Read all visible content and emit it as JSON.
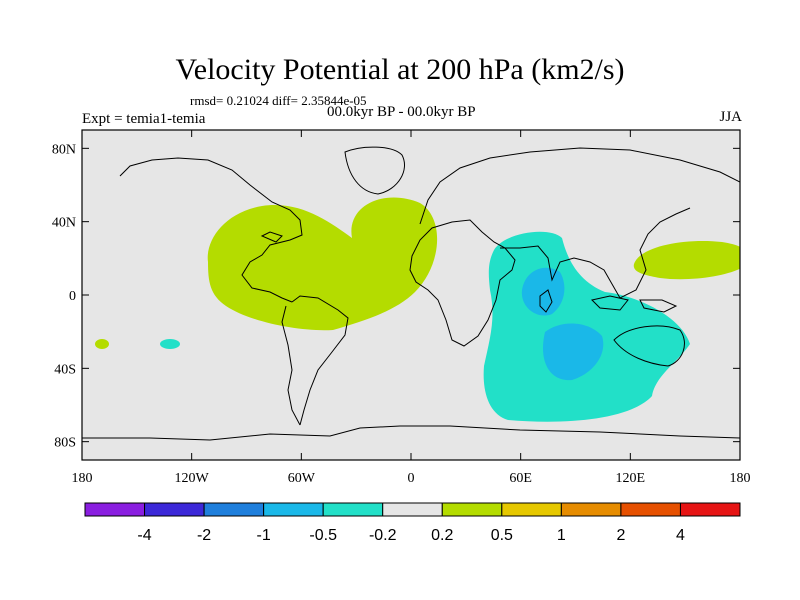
{
  "chart_data": {
    "type": "contour-map",
    "title": "Velocity Potential at 200 hPa (km2/s)",
    "stats_text": "rmsd= 0.21024 diff= 2.35844e-05",
    "experiment_text": "Expt = temia1-temia",
    "period_text": "00.0kyr BP - 00.0kyr BP",
    "season": "JJA",
    "x_range": [
      -180,
      180
    ],
    "y_range": [
      -90,
      90
    ],
    "x_ticks": [
      -180,
      -120,
      -60,
      0,
      60,
      120,
      180
    ],
    "x_tick_labels": [
      "180",
      "120W",
      "60W",
      "0",
      "60E",
      "120E",
      "180"
    ],
    "y_ticks": [
      80,
      40,
      0,
      -40,
      -80
    ],
    "y_tick_labels": [
      "80N",
      "40N",
      "0",
      "40S",
      "80S"
    ],
    "colorbar": {
      "colors": [
        "#8a1ee0",
        "#3c28d8",
        "#1f7fdc",
        "#1ab8e8",
        "#22e0c8",
        "#e6e6e6",
        "#b4dc00",
        "#e6c800",
        "#e68c00",
        "#e65000",
        "#e61414"
      ],
      "labels": [
        "-4",
        "-2",
        "-1",
        "-0.5",
        "-0.2",
        "0.2",
        "0.5",
        "1",
        "2",
        "4"
      ]
    },
    "regions": [
      {
        "name": "atlantic-america-positive",
        "level": "0.2 to 0.5",
        "lon_range": [
          -110,
          10
        ],
        "lat_range": [
          -20,
          50
        ]
      },
      {
        "name": "west-pacific-positive",
        "level": "0.2 to 0.5",
        "lon_range": [
          123,
          180
        ],
        "lat_range": [
          15,
          30
        ]
      },
      {
        "name": "south-pacific-positive-spot",
        "level": "0.2 to 0.5",
        "lon_range": [
          -175,
          -170
        ],
        "lat_range": [
          -30,
          -25
        ]
      },
      {
        "name": "indian-ocean-negative",
        "level": "-0.5 to -0.2",
        "lon_range": [
          40,
          160
        ],
        "lat_range": [
          -70,
          35
        ]
      },
      {
        "name": "arabian-sea-negative-core",
        "level": "-1 to -0.5",
        "lon_range": [
          60,
          75
        ],
        "lat_range": [
          0,
          25
        ]
      },
      {
        "name": "south-indian-negative-core",
        "level": "-1 to -0.5",
        "lon_range": [
          70,
          105
        ],
        "lat_range": [
          -45,
          -10
        ]
      },
      {
        "name": "south-pacific-negative-spot",
        "level": "-0.5 to -0.2",
        "lon_range": [
          -150,
          -142
        ],
        "lat_range": [
          -30,
          -25
        ]
      }
    ]
  }
}
